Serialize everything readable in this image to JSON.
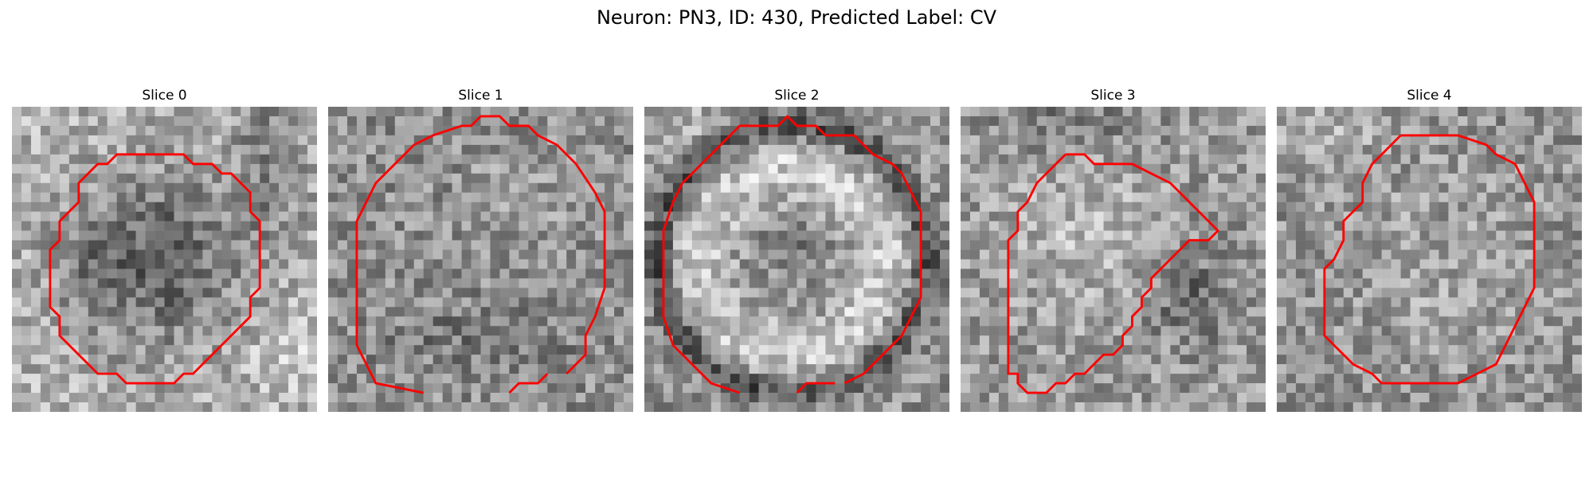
{
  "figure": {
    "title": "Neuron: PN3, ID: 430, Predicted Label: CV"
  },
  "panels": [
    {
      "title": "Slice 0"
    },
    {
      "title": "Slice 1"
    },
    {
      "title": "Slice 2"
    },
    {
      "title": "Slice 3"
    },
    {
      "title": "Slice 4"
    }
  ],
  "colors": {
    "contour": "#ff0000",
    "colormap": "gray"
  }
}
